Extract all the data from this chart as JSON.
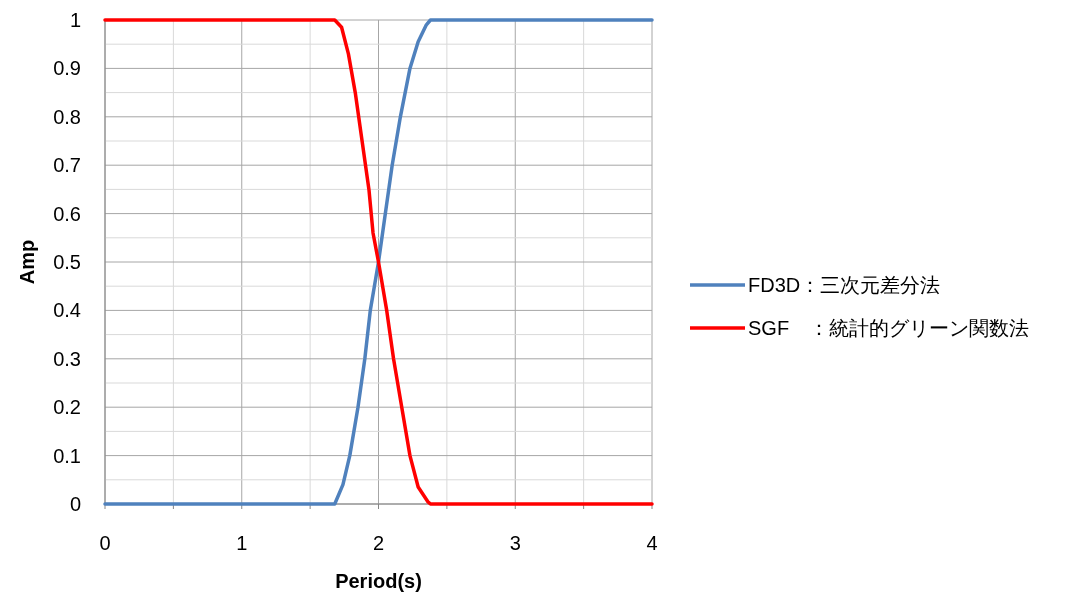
{
  "chart_data": {
    "type": "line",
    "xlabel": "Period(s)",
    "ylabel": "Amp",
    "xlim": [
      0,
      4
    ],
    "ylim": [
      0,
      1
    ],
    "xticks": [
      0,
      {
        "value": 0.5,
        "label": null
      },
      1,
      {
        "value": 1.5,
        "label": null
      },
      2,
      {
        "value": 2.5,
        "label": null
      },
      3,
      {
        "value": 3.5,
        "label": null
      },
      4
    ],
    "yticks": [
      0,
      {
        "value": 0.05,
        "label": null
      },
      0.1,
      {
        "value": 0.15,
        "label": null
      },
      0.2,
      {
        "value": 0.25,
        "label": null
      },
      0.3,
      {
        "value": 0.35,
        "label": null
      },
      0.4,
      {
        "value": 0.45,
        "label": null
      },
      0.5,
      {
        "value": 0.55,
        "label": null
      },
      0.6,
      {
        "value": 0.65,
        "label": null
      },
      0.7,
      {
        "value": 0.75,
        "label": null
      },
      0.8,
      {
        "value": 0.85,
        "label": null
      },
      0.9,
      {
        "value": 0.95,
        "label": null
      },
      1
    ],
    "grid": true,
    "legend": "right",
    "marker": "none",
    "line_style": "solid",
    "series": [
      {
        "name": "FD3D：三次元差分法",
        "color": "#4f81bd",
        "x": [
          0,
          1.68,
          1.74,
          1.79,
          1.85,
          1.9,
          1.94,
          1.97,
          2.0,
          2.05,
          2.1,
          2.16,
          2.23,
          2.29,
          2.35,
          2.38,
          4
        ],
        "values": [
          0,
          0,
          0.04,
          0.1,
          0.2,
          0.3,
          0.4,
          0.45,
          0.5,
          0.6,
          0.7,
          0.8,
          0.9,
          0.955,
          0.99,
          1,
          1
        ]
      },
      {
        "name": "SGF　：統計的グリーン関数法",
        "color": "#ff0000",
        "x": [
          0,
          1.68,
          1.73,
          1.78,
          1.83,
          1.88,
          1.93,
          1.96,
          2.0,
          2.06,
          2.11,
          2.17,
          2.23,
          2.29,
          2.36,
          2.38,
          4
        ],
        "values": [
          1,
          1,
          0.985,
          0.93,
          0.85,
          0.75,
          0.65,
          0.56,
          0.5,
          0.4,
          0.3,
          0.2,
          0.1,
          0.035,
          0.005,
          0,
          0
        ]
      }
    ]
  }
}
